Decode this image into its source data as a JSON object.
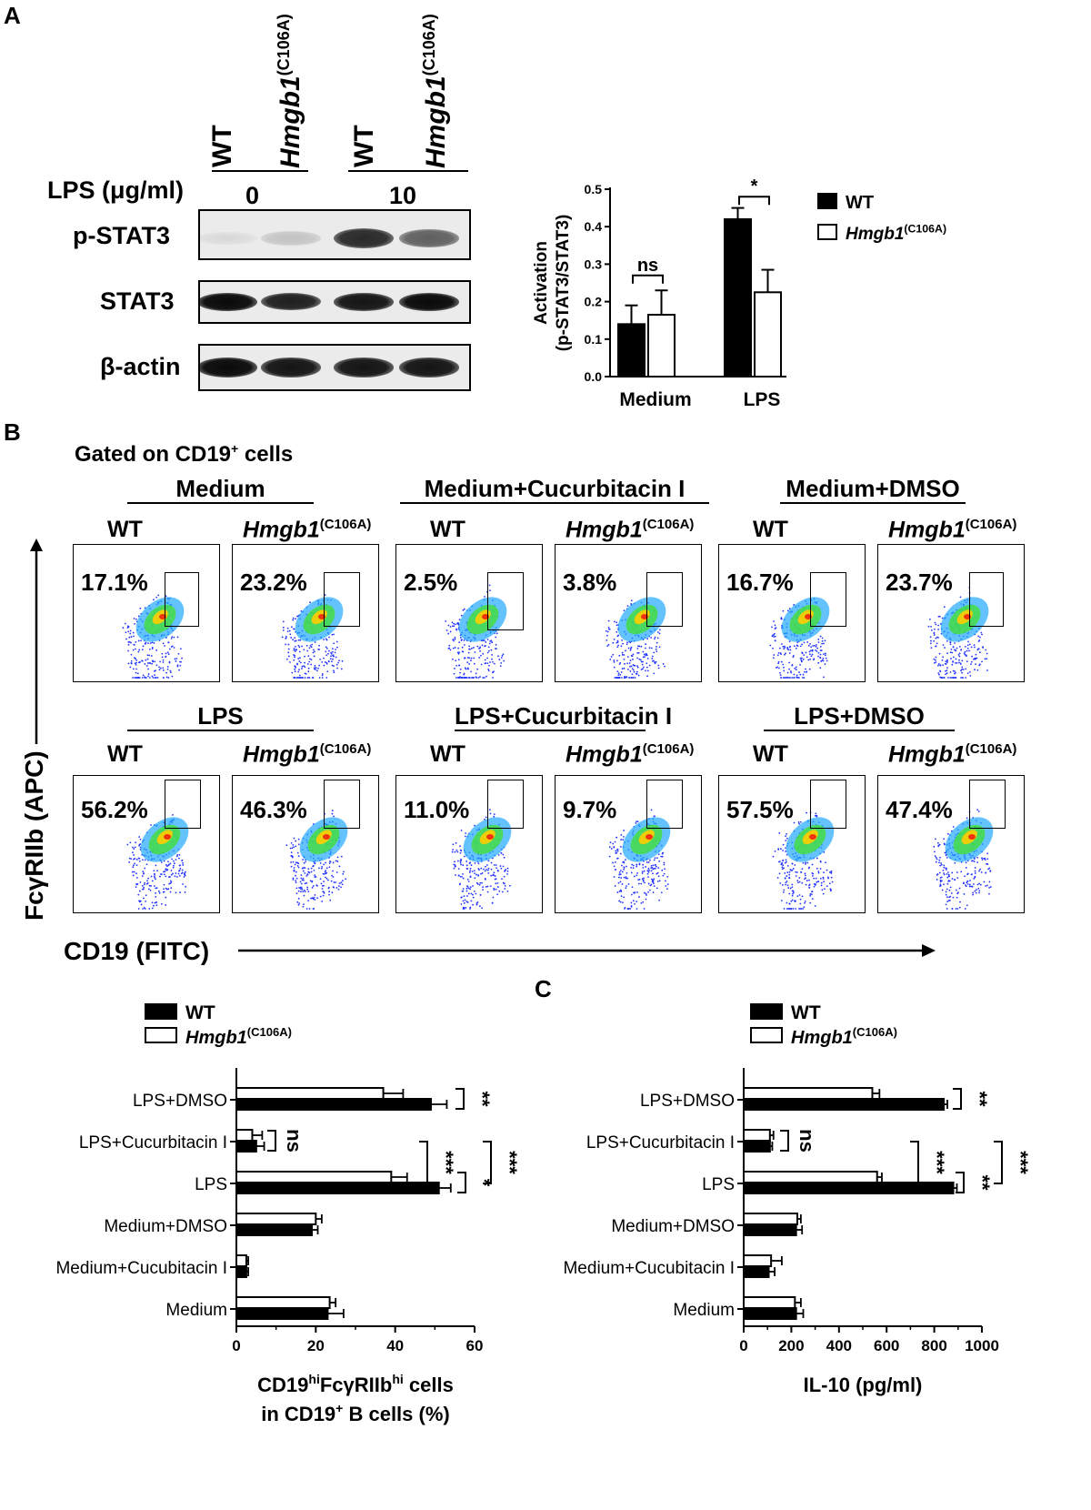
{
  "panel_letters": {
    "a": "A",
    "b": "B",
    "c": "C"
  },
  "panel_a": {
    "lane_labels": [
      "WT",
      "Hmgb1",
      "WT",
      "Hmgb1"
    ],
    "mutant_superscript": "(C106A)",
    "lps_label": "LPS (μg/ml)",
    "dose_0": "0",
    "dose_10": "10",
    "rows": [
      "p-STAT3",
      "STAT3",
      "β-actin"
    ],
    "band_intensity": {
      "p-STAT3": [
        0.05,
        0.15,
        0.85,
        0.6
      ],
      "STAT3": [
        1,
        0.9,
        0.95,
        1
      ],
      "β-actin": [
        1,
        0.95,
        0.95,
        0.95
      ]
    }
  },
  "chart_data": [
    {
      "type": "bar",
      "ylabel_line1": "Activation",
      "ylabel_line2": "(p-STAT3/STAT3)",
      "categories": [
        "Medium",
        "LPS"
      ],
      "series": [
        {
          "name": "WT",
          "values": [
            0.14,
            0.42
          ],
          "errors": [
            0.05,
            0.03
          ]
        },
        {
          "name": "Hmgb1",
          "values": [
            0.165,
            0.225
          ],
          "errors": [
            0.065,
            0.06
          ]
        }
      ],
      "ylim": [
        0,
        0.5
      ],
      "yticks": [
        "0.0",
        "0.1",
        "0.2",
        "0.3",
        "0.4",
        "0.5"
      ],
      "significance": [
        "ns",
        "*"
      ],
      "legend": [
        "WT",
        "Hmgb1"
      ],
      "legend_superscript": "(C106A)"
    },
    {
      "type": "bar",
      "orientation": "horizontal",
      "categories": [
        "LPS+DMSO",
        "LPS+Cucurbitacin I",
        "LPS",
        "Medium+DMSO",
        "Medium+Cucubitacin I",
        "Medium"
      ],
      "series": [
        {
          "name": "WT",
          "values": [
            49,
            5,
            51,
            19,
            2.5,
            23
          ],
          "errors": [
            4,
            2,
            3,
            1.5,
            0.5,
            4
          ]
        },
        {
          "name": "Hmgb1",
          "values": [
            37,
            4,
            39,
            20,
            2.5,
            23.5
          ],
          "errors": [
            5,
            2.5,
            4,
            1.5,
            0.5,
            1.5
          ]
        }
      ],
      "xlim": [
        0,
        60
      ],
      "xticks": [
        "0",
        "20",
        "40",
        "60"
      ],
      "xlabel_line1": "CD19",
      "xlabel_sup1": "hi",
      "xlabel_mid": "FcγRIIb",
      "xlabel_sup2": "hi",
      "xlabel_end": " cells",
      "xlabel_line2": "in CD19",
      "xlabel_sup3": "+",
      "xlabel_line2_end": " B cells (%)",
      "significance": [
        "**",
        "ns",
        "***",
        "*",
        "***"
      ],
      "legend": [
        "WT",
        "Hmgb1"
      ],
      "legend_superscript": "(C106A)"
    },
    {
      "type": "bar",
      "orientation": "horizontal",
      "categories": [
        "LPS+DMSO",
        "LPS+Cucurbitacin I",
        "LPS",
        "Medium+DMSO",
        "Medium+Cucubitacin I",
        "Medium"
      ],
      "series": [
        {
          "name": "WT",
          "values": [
            840,
            110,
            880,
            220,
            105,
            220
          ],
          "errors": [
            15,
            10,
            15,
            25,
            25,
            30
          ]
        },
        {
          "name": "Hmgb1",
          "values": [
            540,
            110,
            560,
            225,
            115,
            215
          ],
          "errors": [
            30,
            15,
            20,
            15,
            45,
            25
          ]
        }
      ],
      "xlim": [
        0,
        1000
      ],
      "xticks": [
        "0",
        "200",
        "400",
        "600",
        "800",
        "1000"
      ],
      "xlabel": "IL-10 (pg/ml)",
      "significance": [
        "**",
        "ns",
        "***",
        "**",
        "***"
      ],
      "legend": [
        "WT",
        "Hmgb1"
      ],
      "legend_superscript": "(C106A)"
    }
  ],
  "panel_b": {
    "gated_on_prefix": "Gated on CD19",
    "gated_on_sup": "+",
    "gated_on_suffix": " cells",
    "conditions_top": [
      "Medium",
      "Medium+Cucurbitacin I",
      "Medium+DMSO"
    ],
    "conditions_bottom": [
      "LPS",
      "LPS+Cucurbitacin I",
      "LPS+DMSO"
    ],
    "wt": "WT",
    "mut": "Hmgb1",
    "mut_sup": "(C106A)",
    "percent_top": [
      "17.1%",
      "23.2%",
      "2.5%",
      "3.8%",
      "16.7%",
      "23.7%"
    ],
    "percent_bottom": [
      "56.2%",
      "46.3%",
      "11.0%",
      "9.7%",
      "57.5%",
      "47.4%"
    ],
    "y_axis_label": "FcγRIIb (APC)",
    "x_axis_label": "CD19 (FITC)"
  }
}
